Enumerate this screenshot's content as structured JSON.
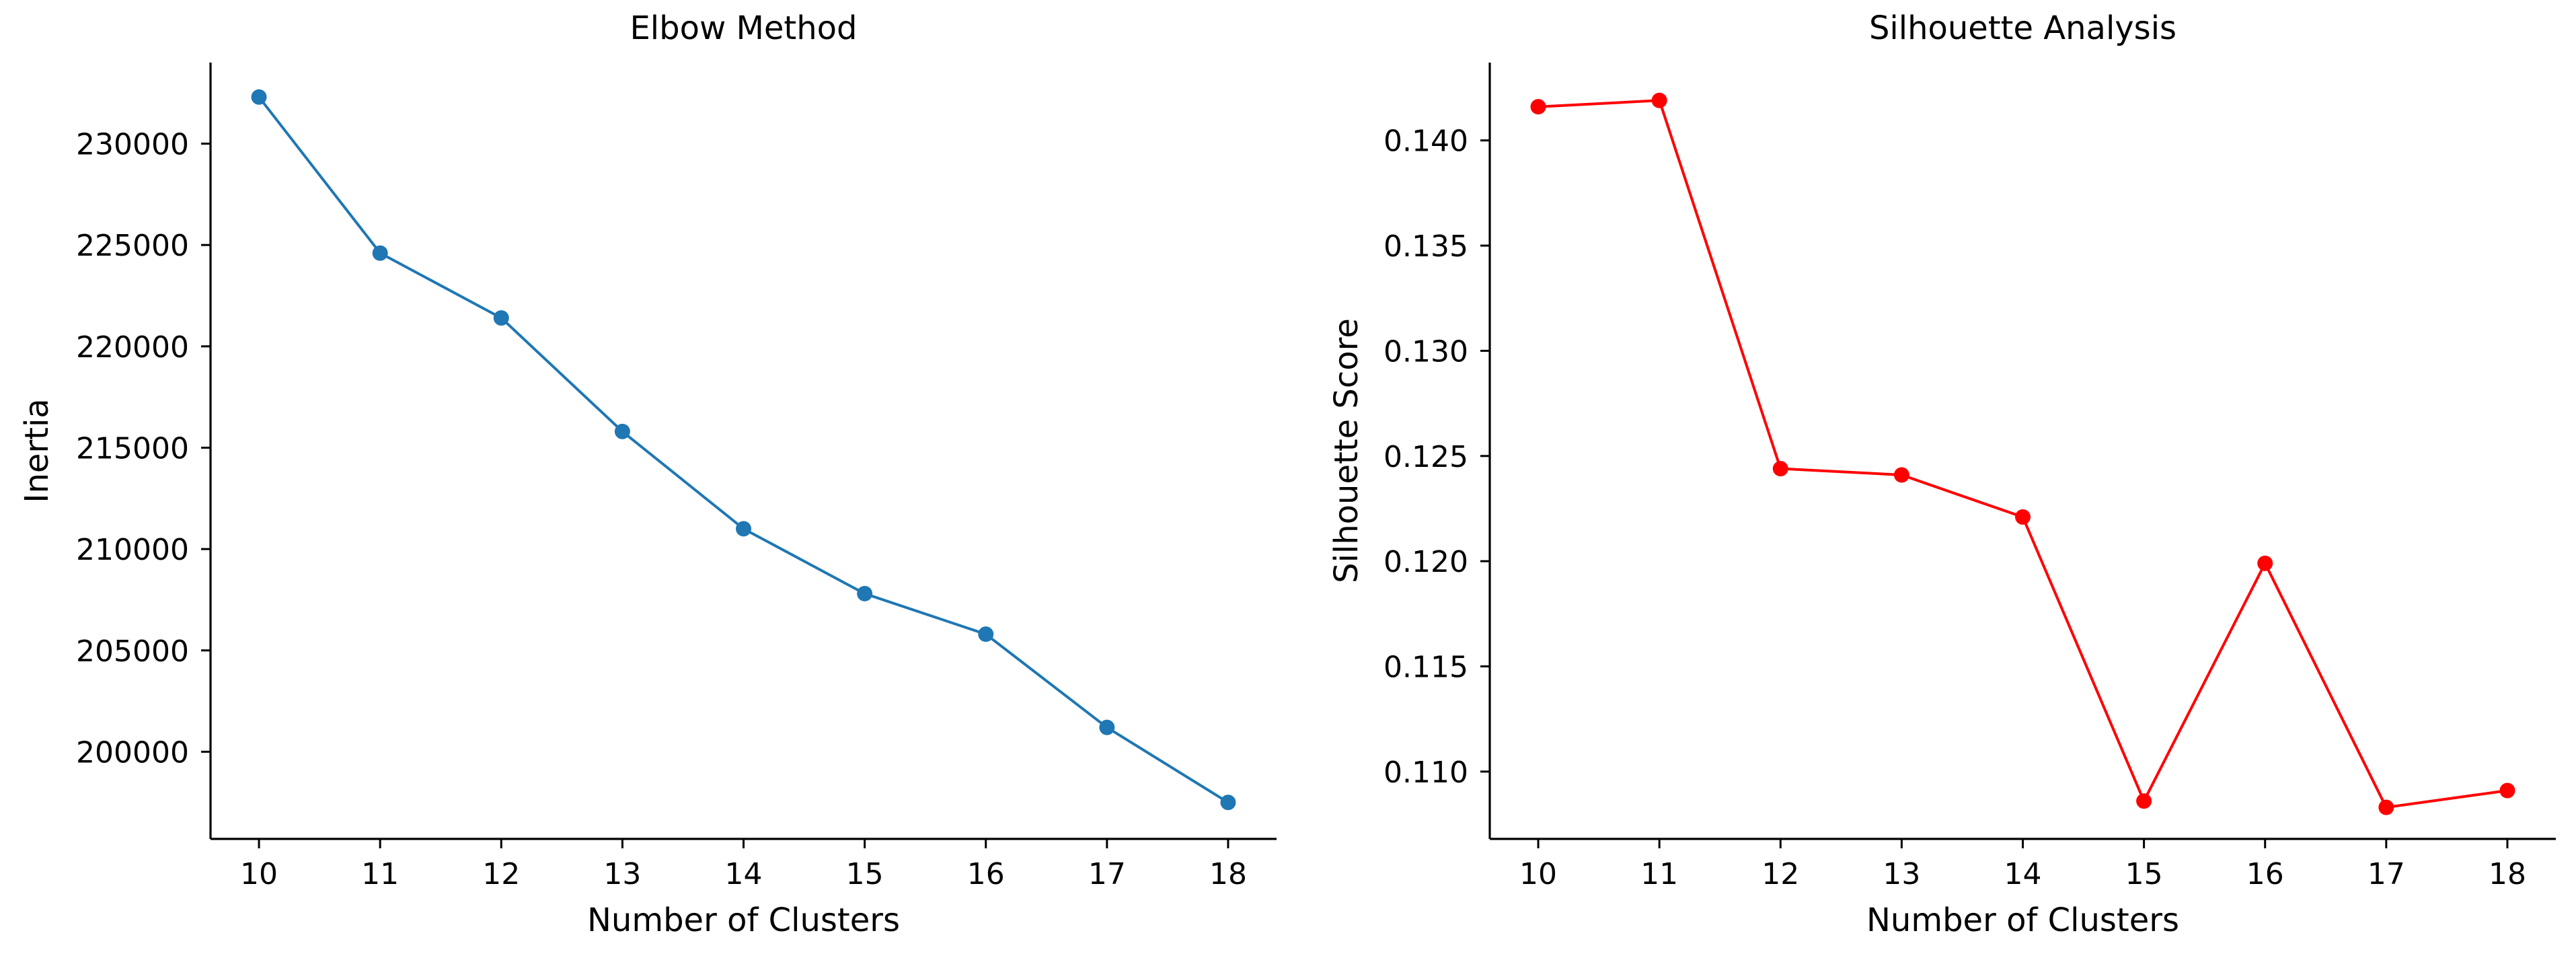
{
  "chart_data": [
    {
      "type": "line",
      "title": "Elbow Method",
      "xlabel": "Number of Clusters",
      "ylabel": "Inertia",
      "x": [
        10,
        11,
        12,
        13,
        14,
        15,
        16,
        17,
        18
      ],
      "xticks": [
        "10",
        "11",
        "12",
        "13",
        "14",
        "15",
        "16",
        "17",
        "18"
      ],
      "xlim": [
        9.6,
        18.4
      ],
      "yticks": [
        200000,
        205000,
        210000,
        215000,
        220000,
        225000,
        230000
      ],
      "ylim": [
        195700,
        234000
      ],
      "grid": false,
      "series": [
        {
          "values": [
            232300,
            224600,
            221400,
            215800,
            211000,
            207800,
            205800,
            201200,
            197500
          ],
          "color": "#1f77b4",
          "marker": "circle"
        }
      ]
    },
    {
      "type": "line",
      "title": "Silhouette Analysis",
      "xlabel": "Number of Clusters",
      "ylabel": "Silhouette Score",
      "x": [
        10,
        11,
        12,
        13,
        14,
        15,
        16,
        17,
        18
      ],
      "xticks": [
        "10",
        "11",
        "12",
        "13",
        "14",
        "15",
        "16",
        "17",
        "18"
      ],
      "xlim": [
        9.6,
        18.4
      ],
      "yticks": [
        0.11,
        0.115,
        0.12,
        0.125,
        0.13,
        0.135,
        0.14
      ],
      "ytick_labels": [
        "0.110",
        "0.115",
        "0.120",
        "0.125",
        "0.130",
        "0.135",
        "0.140"
      ],
      "ylim": [
        0.1068,
        0.1437
      ],
      "grid": false,
      "series": [
        {
          "values": [
            0.1416,
            0.1419,
            0.1244,
            0.1241,
            0.1221,
            0.1086,
            0.1199,
            0.1083,
            0.1091
          ],
          "color": "#ff0000",
          "marker": "circle"
        }
      ]
    }
  ]
}
